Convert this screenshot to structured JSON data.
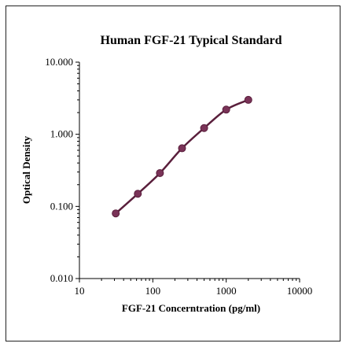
{
  "chart_data": {
    "type": "line",
    "title": "Human FGF-21 Typical Standard",
    "xlabel": "FGF-21 Concerntration (pg/ml)",
    "ylabel": "Optical Density",
    "x_scale": "log",
    "y_scale": "log",
    "xlim": [
      10,
      10000
    ],
    "ylim": [
      0.01,
      10
    ],
    "x_ticks": [
      "10",
      "100",
      "1000",
      "10000"
    ],
    "y_ticks": [
      "0.010",
      "0.100",
      "1.000",
      "10.000"
    ],
    "grid": false,
    "legend": "none",
    "series": [
      {
        "x": [
          31.25,
          62.5,
          125,
          250,
          500,
          1000,
          2000
        ],
        "y": [
          0.08,
          0.15,
          0.29,
          0.64,
          1.22,
          2.2,
          3.0
        ]
      }
    ],
    "colors": {
      "line": "#5a1f3c",
      "marker": "#7a3358",
      "axis": "#000000"
    }
  }
}
